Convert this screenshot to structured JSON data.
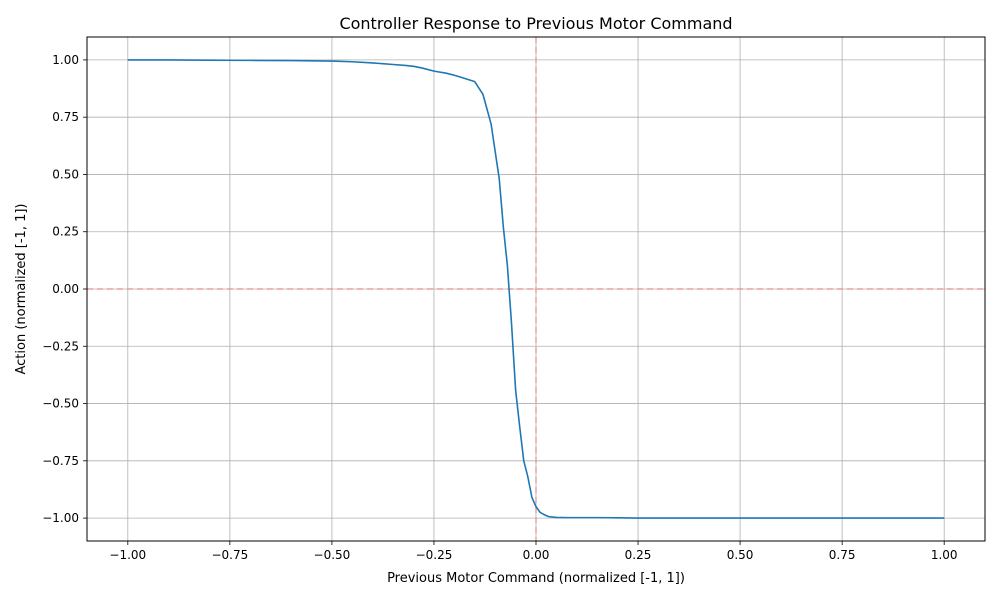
{
  "chart_data": {
    "type": "line",
    "title": "Controller Response to Previous Motor Command",
    "xlabel": "Previous Motor Command (normalized [-1, 1])",
    "ylabel": "Action (normalized [-1, 1])",
    "xlim": [
      -1.1,
      1.1
    ],
    "ylim": [
      -1.1,
      1.1
    ],
    "xticks": [
      -1.0,
      -0.75,
      -0.5,
      -0.25,
      0.0,
      0.25,
      0.5,
      0.75,
      1.0
    ],
    "xtick_labels": [
      "−1.00",
      "−0.75",
      "−0.50",
      "−0.25",
      "0.00",
      "0.25",
      "0.50",
      "0.75",
      "1.00"
    ],
    "yticks": [
      1.0,
      0.75,
      0.5,
      0.25,
      0.0,
      -0.25,
      -0.5,
      -0.75,
      -1.0
    ],
    "ytick_labels": [
      "1.00",
      "0.75",
      "0.50",
      "0.25",
      "0.00",
      "−0.25",
      "−0.50",
      "−0.75",
      "−1.00"
    ],
    "grid": true,
    "reference_lines": [
      {
        "orientation": "horizontal",
        "value": 0.0,
        "style": "dashed",
        "color": "#e88a8a"
      },
      {
        "orientation": "vertical",
        "value": 0.0,
        "style": "dashed",
        "color": "#e88a8a"
      }
    ],
    "series": [
      {
        "color": "#1f77b4",
        "x": [
          -1.0,
          -0.9,
          -0.8,
          -0.7,
          -0.6,
          -0.5,
          -0.45,
          -0.4,
          -0.35,
          -0.32,
          -0.3,
          -0.28,
          -0.25,
          -0.22,
          -0.2,
          -0.18,
          -0.15,
          -0.13,
          -0.11,
          -0.09,
          -0.08,
          -0.07,
          -0.06,
          -0.05,
          -0.04,
          -0.03,
          -0.02,
          -0.01,
          0.0,
          0.01,
          0.02,
          0.03,
          0.05,
          0.08,
          0.1,
          0.15,
          0.2,
          0.25,
          0.3,
          0.4,
          0.5,
          0.6,
          0.7,
          0.8,
          0.9,
          1.0
        ],
        "y": [
          1.0,
          1.0,
          0.999,
          0.998,
          0.997,
          0.995,
          0.992,
          0.987,
          0.98,
          0.976,
          0.972,
          0.965,
          0.951,
          0.942,
          0.933,
          0.922,
          0.905,
          0.85,
          0.72,
          0.48,
          0.27,
          0.1,
          -0.15,
          -0.44,
          -0.6,
          -0.75,
          -0.82,
          -0.91,
          -0.95,
          -0.975,
          -0.985,
          -0.993,
          -0.997,
          -0.998,
          -0.998,
          -0.998,
          -0.999,
          -1.0,
          -1.0,
          -1.0,
          -1.0,
          -1.0,
          -1.0,
          -1.0,
          -1.0,
          -1.0
        ]
      }
    ]
  }
}
